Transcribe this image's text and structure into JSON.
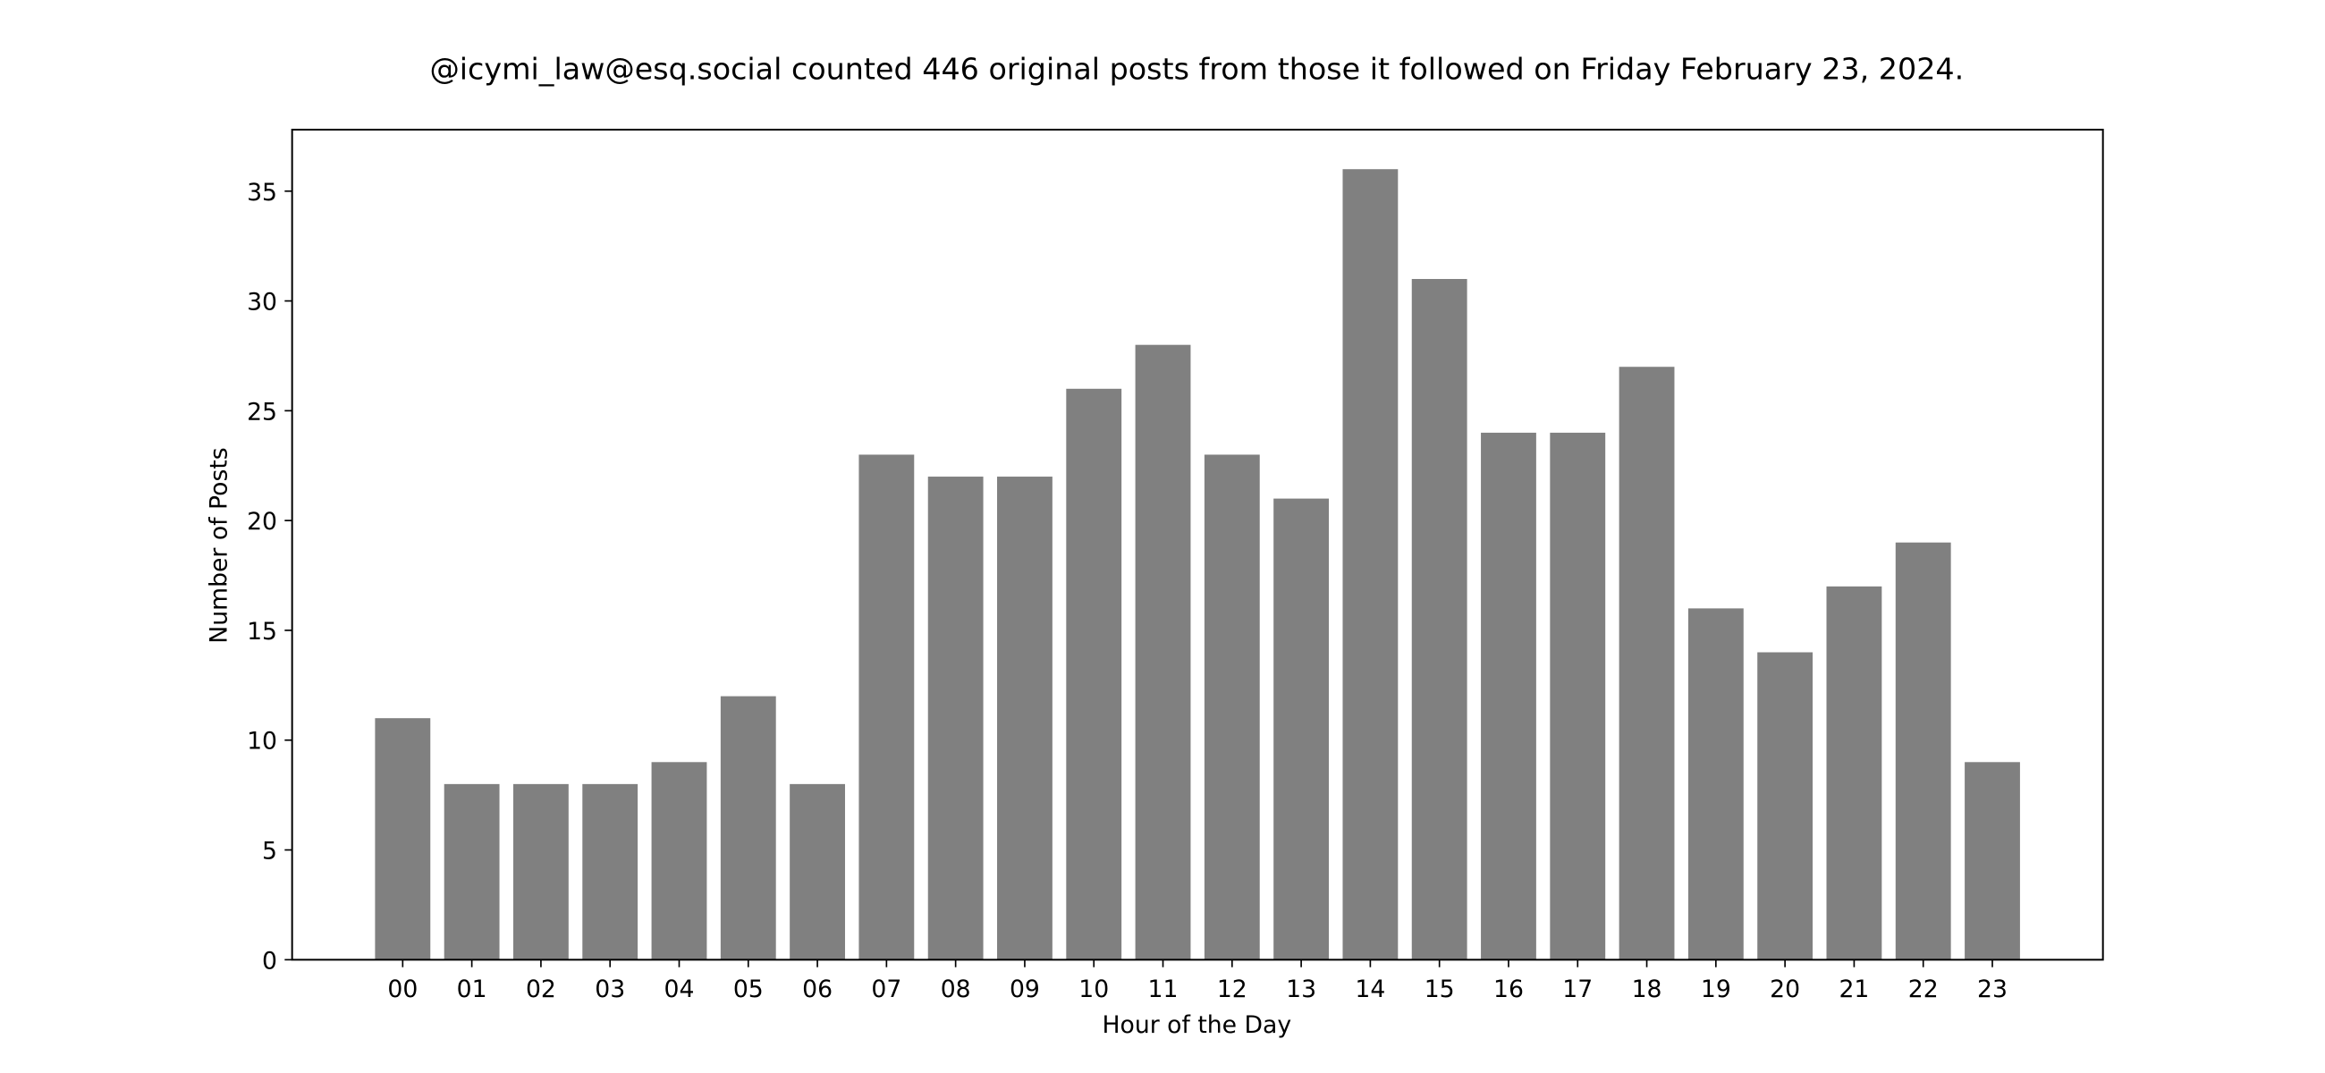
{
  "chart_data": {
    "type": "bar",
    "title": "@icymi_law@esq.social counted 446 original posts from those it followed on Friday February 23, 2024.",
    "xlabel": "Hour of the Day",
    "ylabel": "Number of Posts",
    "categories": [
      "00",
      "01",
      "02",
      "03",
      "04",
      "05",
      "06",
      "07",
      "08",
      "09",
      "10",
      "11",
      "12",
      "13",
      "14",
      "15",
      "16",
      "17",
      "18",
      "19",
      "20",
      "21",
      "22",
      "23"
    ],
    "values": [
      11,
      8,
      8,
      8,
      9,
      12,
      8,
      23,
      22,
      22,
      26,
      28,
      23,
      21,
      36,
      31,
      24,
      24,
      27,
      16,
      14,
      17,
      19,
      9
    ],
    "yticks": [
      0,
      5,
      10,
      15,
      20,
      25,
      30,
      35
    ],
    "ylim": [
      0,
      37.8
    ],
    "xlim": [
      -1.6,
      24.6
    ],
    "grid": false,
    "legend": "none",
    "bar_color": "#808080"
  }
}
